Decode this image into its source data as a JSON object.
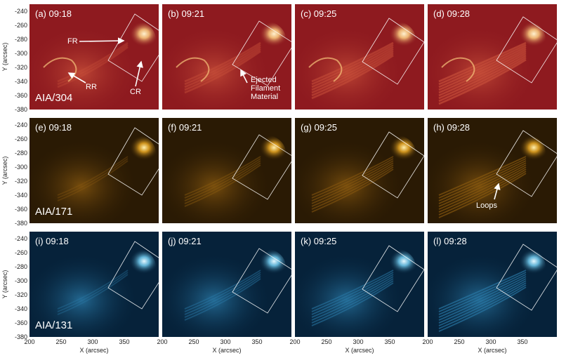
{
  "rows": [
    {
      "channel": "AIA/304",
      "palette": {
        "bg": "#8e1a1f",
        "mid": "#c8503a",
        "bright": "#f6c37a",
        "white": "#fff1d0"
      },
      "panels": [
        {
          "label": "(a) 09:18"
        },
        {
          "label": "(b) 09:21"
        },
        {
          "label": "(c) 09:25"
        },
        {
          "label": "(d) 09:28"
        }
      ]
    },
    {
      "channel": "AIA/171",
      "palette": {
        "bg": "#2a1a04",
        "mid": "#8a5a10",
        "bright": "#e0a020",
        "white": "#fff0b0"
      },
      "panels": [
        {
          "label": "(e) 09:18"
        },
        {
          "label": "(f) 09:21"
        },
        {
          "label": "(g) 09:25"
        },
        {
          "label": "(h) 09:28"
        }
      ]
    },
    {
      "channel": "AIA/131",
      "palette": {
        "bg": "#06223a",
        "mid": "#2a7aa8",
        "bright": "#6cc4e8",
        "white": "#e6f8ff"
      },
      "panels": [
        {
          "label": "(i) 09:18"
        },
        {
          "label": "(j) 09:21"
        },
        {
          "label": "(k) 09:25"
        },
        {
          "label": "(l) 09:28"
        }
      ]
    }
  ],
  "annotations": {
    "fr": "FR",
    "rr": "RR",
    "cr": "CR",
    "ejected": "Ejected",
    "filament": "Filament",
    "material": "Material",
    "loops": "Loops"
  },
  "axes": {
    "y_title": "Y (arcsec)",
    "x_title": "X (arcsec)",
    "y_ticks": [
      "-240",
      "-260",
      "-280",
      "-300",
      "-320",
      "-340",
      "-360",
      "-380"
    ],
    "x_ticks": [
      "200",
      "250",
      "300",
      "350"
    ]
  }
}
